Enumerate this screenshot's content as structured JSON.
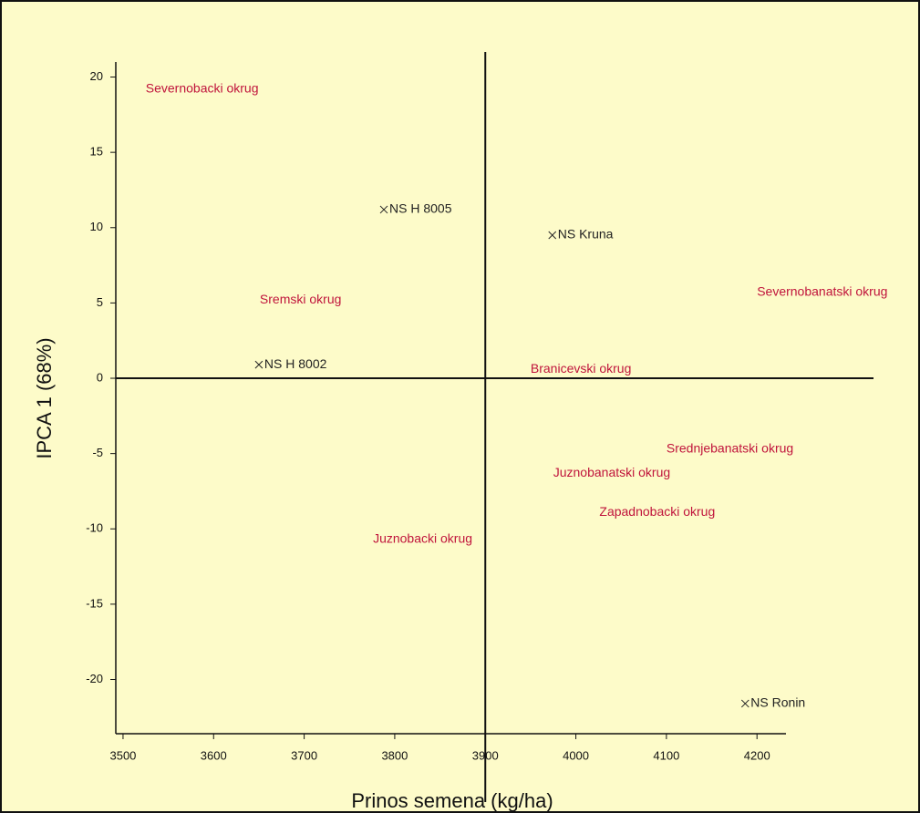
{
  "chart_data": {
    "type": "scatter",
    "x_label": "Prinos semena (kg/ha)",
    "y_label": "IPCA 1 (68%)",
    "xlim": [
      3492,
      4232
    ],
    "ylim": [
      -23.6,
      21
    ],
    "xticks": [
      3500,
      3600,
      3700,
      3800,
      3900,
      4000,
      4100,
      4200
    ],
    "yticks": [
      20,
      15,
      10,
      5,
      0,
      -5,
      -10,
      -15,
      -20
    ],
    "reference_lines": {
      "x": 3900,
      "y": 0
    },
    "series": [
      {
        "names": [
          "NS H 8005",
          "NS Kruna",
          "NS H 8002",
          "NS Ronin"
        ],
        "marker": "x",
        "color": "#222222",
        "x": [
          3788,
          3974,
          3650,
          4187
        ],
        "values": [
          11.2,
          9.5,
          0.9,
          -21.6
        ]
      },
      {
        "names": [
          "Severnobacki okrug",
          "Sremski okrug",
          "Severnobanatski okrug",
          "Branicevski okrug",
          "Srednjebanatski okrug",
          "Juznobanatski okrug",
          "Zapadnobacki okrug",
          "Juznobacki okrug"
        ],
        "marker": "none",
        "color": "#c0143c",
        "x": [
          3525,
          3651,
          4200,
          3950,
          4100,
          3975,
          4026,
          3776
        ],
        "values": [
          19.2,
          5.2,
          5.7,
          0.6,
          -4.7,
          -6.3,
          -8.9,
          -10.7
        ]
      }
    ]
  }
}
